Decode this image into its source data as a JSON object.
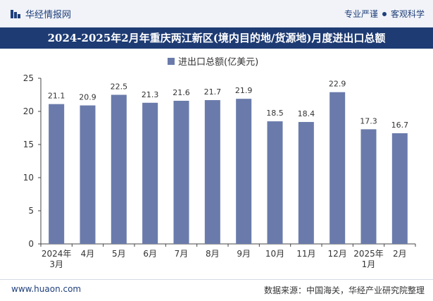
{
  "header": {
    "brand": "华经情报网",
    "slogan_1": "专业严谨",
    "slogan_2": "客观科学"
  },
  "footer": {
    "website": "www.huaon.com",
    "source": "数据来源：中国海关，华经产业研究院整理"
  },
  "colors": {
    "bar": "#6a7bab",
    "title_bg": "#1e3b73",
    "brand": "#1f3f7a"
  },
  "chart_data": {
    "type": "bar",
    "title": "2024-2025年2月年重庆两江新区(境内目的地/货源地)月度进出口总额",
    "legend": "进出口总额(亿美元)",
    "categories": [
      "2024年3月",
      "4月",
      "5月",
      "6月",
      "7月",
      "8月",
      "9月",
      "10月",
      "11月",
      "12月",
      "2025年1月",
      "2月"
    ],
    "series": [
      {
        "name": "进出口总额(亿美元)",
        "values": [
          21.1,
          20.9,
          22.5,
          21.3,
          21.6,
          21.7,
          21.9,
          18.5,
          18.4,
          22.9,
          17.3,
          16.7
        ]
      }
    ],
    "yticks": [
      "0",
      "5",
      "10",
      "15",
      "20",
      "25"
    ],
    "ylim": [
      0,
      25
    ],
    "grid": false,
    "legend_position": "top-center"
  }
}
